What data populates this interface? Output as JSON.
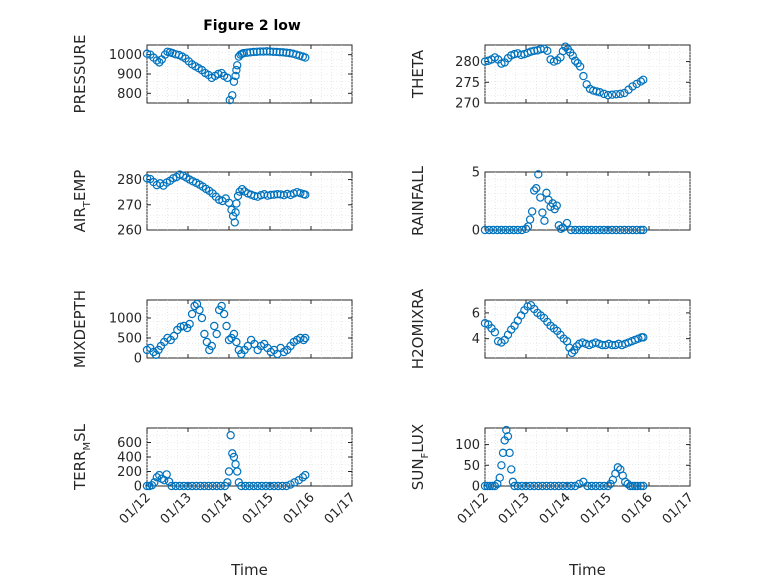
{
  "figure_title": "Figure 2 low",
  "colors": {
    "marker": "#0072BD",
    "axes": "#262626",
    "grid": "#d9d9d9"
  },
  "chart_data": [
    {
      "type": "scatter",
      "title": "Figure 2 low",
      "ylabel": "PRESSURE",
      "ylabel_sub": "",
      "ylabel_tail": "",
      "ylim": [
        750,
        1050
      ],
      "yticks": [
        800,
        900,
        1000
      ],
      "xlim": [
        0,
        5
      ],
      "xticks": [
        0,
        1,
        2,
        3,
        4,
        5
      ],
      "xticklabels": [
        "01/12",
        "01/13",
        "01/14",
        "01/15",
        "01/16",
        "01/17"
      ],
      "xlabel": "",
      "grid": true,
      "x": [
        0.0,
        0.08,
        0.16,
        0.24,
        0.3,
        0.36,
        0.44,
        0.5,
        0.56,
        0.62,
        0.7,
        0.78,
        0.86,
        0.94,
        1.02,
        1.1,
        1.18,
        1.26,
        1.34,
        1.42,
        1.5,
        1.58,
        1.66,
        1.74,
        1.82,
        1.88,
        1.96,
        2.02,
        2.08,
        2.12,
        2.16,
        2.18,
        2.2,
        2.24,
        2.28,
        2.32,
        2.36,
        2.44,
        2.52,
        2.6,
        2.68,
        2.76,
        2.84,
        2.92,
        3.0,
        3.08,
        3.16,
        3.24,
        3.32,
        3.4,
        3.48,
        3.56,
        3.64,
        3.72,
        3.8,
        3.86
      ],
      "y": [
        1005,
        1000,
        985,
        970,
        960,
        975,
        1000,
        1015,
        1012,
        1008,
        1002,
        998,
        990,
        980,
        965,
        950,
        940,
        930,
        920,
        905,
        895,
        880,
        890,
        900,
        905,
        890,
        880,
        765,
        790,
        860,
        890,
        920,
        945,
        990,
        1000,
        1005,
        1008,
        1010,
        1012,
        1014,
        1015,
        1016,
        1016,
        1017,
        1016,
        1015,
        1014,
        1013,
        1012,
        1010,
        1008,
        1005,
        1000,
        995,
        990,
        985
      ]
    },
    {
      "type": "scatter",
      "title": "",
      "ylabel": "THETA",
      "ylabel_sub": "",
      "ylabel_tail": "",
      "ylim": [
        270,
        284
      ],
      "yticks": [
        270,
        275,
        280
      ],
      "xlim": [
        0,
        5
      ],
      "xticks": [
        0,
        1,
        2,
        3,
        4,
        5
      ],
      "xticklabels": [
        "01/12",
        "01/13",
        "01/14",
        "01/15",
        "01/16",
        "01/17"
      ],
      "xlabel": "",
      "grid": true,
      "x": [
        0.0,
        0.08,
        0.16,
        0.24,
        0.32,
        0.4,
        0.48,
        0.56,
        0.64,
        0.72,
        0.8,
        0.88,
        0.96,
        1.04,
        1.12,
        1.2,
        1.28,
        1.36,
        1.44,
        1.52,
        1.6,
        1.68,
        1.76,
        1.84,
        1.9,
        1.96,
        2.02,
        2.08,
        2.14,
        2.2,
        2.26,
        2.32,
        2.4,
        2.48,
        2.56,
        2.64,
        2.72,
        2.8,
        2.9,
        3.0,
        3.1,
        3.2,
        3.3,
        3.4,
        3.5,
        3.6,
        3.7,
        3.8,
        3.86
      ],
      "y": [
        280,
        280.2,
        280.5,
        281,
        280.5,
        279.5,
        279.8,
        280.8,
        281.5,
        281.8,
        282,
        281.6,
        281.8,
        282.1,
        282.4,
        282.6,
        282.7,
        283,
        283.1,
        282.6,
        280.5,
        280,
        280.3,
        281,
        282.5,
        283.6,
        283,
        282.2,
        281.4,
        280.2,
        279.6,
        278.8,
        276.5,
        274.5,
        273.4,
        273,
        272.8,
        272.6,
        272.2,
        271.9,
        272,
        272.1,
        272.2,
        272.4,
        273.2,
        274,
        274.6,
        275.2,
        275.6
      ]
    },
    {
      "type": "scatter",
      "title": "",
      "ylabel": "AIR",
      "ylabel_sub": "T",
      "ylabel_tail": "EMP",
      "ylim": [
        260,
        283
      ],
      "yticks": [
        260,
        270,
        280
      ],
      "xlim": [
        0,
        5
      ],
      "xticks": [
        0,
        1,
        2,
        3,
        4,
        5
      ],
      "xticklabels": [
        "01/12",
        "01/13",
        "01/14",
        "01/15",
        "01/16",
        "01/17"
      ],
      "xlabel": "",
      "grid": true,
      "x": [
        0.0,
        0.08,
        0.16,
        0.24,
        0.32,
        0.4,
        0.48,
        0.56,
        0.64,
        0.72,
        0.8,
        0.88,
        0.96,
        1.04,
        1.12,
        1.2,
        1.28,
        1.36,
        1.44,
        1.52,
        1.6,
        1.68,
        1.76,
        1.84,
        1.92,
        2.0,
        2.06,
        2.1,
        2.14,
        2.16,
        2.18,
        2.22,
        2.26,
        2.32,
        2.38,
        2.46,
        2.54,
        2.62,
        2.7,
        2.78,
        2.86,
        2.94,
        3.02,
        3.1,
        3.18,
        3.26,
        3.34,
        3.42,
        3.5,
        3.58,
        3.66,
        3.74,
        3.82,
        3.86
      ],
      "y": [
        280.5,
        280.2,
        279,
        277.8,
        278.5,
        277.6,
        278.8,
        279.5,
        280.5,
        281,
        282,
        281.5,
        280.8,
        280,
        279.3,
        278.7,
        278,
        277.2,
        276.3,
        275.5,
        274.5,
        273.2,
        272,
        271.5,
        272.5,
        270.8,
        268,
        265.5,
        263,
        267,
        270.5,
        273.5,
        275.2,
        276.2,
        275.3,
        274.5,
        274,
        273.5,
        273.2,
        273.8,
        274.2,
        273.6,
        273.9,
        274,
        274.2,
        274.1,
        273.8,
        274.3,
        273.9,
        274.5,
        275,
        274.6,
        274.2,
        274
      ]
    },
    {
      "type": "scatter",
      "title": "",
      "ylabel": "RAINFALL",
      "ylabel_sub": "",
      "ylabel_tail": "",
      "ylim": [
        0,
        5
      ],
      "yticks": [
        0,
        5
      ],
      "xlim": [
        0,
        5
      ],
      "xticks": [
        0,
        1,
        2,
        3,
        4,
        5
      ],
      "xticklabels": [
        "01/12",
        "01/13",
        "01/14",
        "01/15",
        "01/16",
        "01/17"
      ],
      "xlabel": "",
      "grid": true,
      "x": [
        0.0,
        0.1,
        0.2,
        0.3,
        0.4,
        0.5,
        0.6,
        0.7,
        0.8,
        0.9,
        1.0,
        1.05,
        1.1,
        1.15,
        1.2,
        1.25,
        1.3,
        1.35,
        1.4,
        1.45,
        1.5,
        1.55,
        1.6,
        1.65,
        1.7,
        1.75,
        1.8,
        1.85,
        1.9,
        2.0,
        2.1,
        2.2,
        2.3,
        2.4,
        2.5,
        2.6,
        2.7,
        2.8,
        2.9,
        3.0,
        3.1,
        3.2,
        3.3,
        3.4,
        3.5,
        3.6,
        3.7,
        3.8,
        3.86
      ],
      "y": [
        0,
        0,
        0,
        0,
        0,
        0,
        0,
        0,
        0,
        0,
        0.1,
        0.3,
        0.9,
        1.6,
        3.4,
        3.6,
        4.8,
        2.8,
        1.5,
        0.8,
        3.2,
        2.6,
        2.0,
        2.3,
        1.8,
        2.1,
        0.4,
        0.1,
        0.2,
        0.6,
        0,
        0,
        0,
        0,
        0,
        0,
        0,
        0,
        0,
        0,
        0,
        0,
        0,
        0,
        0,
        0,
        0,
        0,
        0
      ]
    },
    {
      "type": "scatter",
      "title": "",
      "ylabel": "MIXDEPTH",
      "ylabel_sub": "",
      "ylabel_tail": "",
      "ylim": [
        0,
        1450
      ],
      "yticks": [
        0,
        500,
        1000
      ],
      "xlim": [
        0,
        5
      ],
      "xticks": [
        0,
        1,
        2,
        3,
        4,
        5
      ],
      "xticklabels": [
        "01/12",
        "01/13",
        "01/14",
        "01/15",
        "01/16",
        "01/17"
      ],
      "xlabel": "",
      "grid": true,
      "x": [
        0.0,
        0.08,
        0.16,
        0.22,
        0.28,
        0.34,
        0.42,
        0.5,
        0.58,
        0.66,
        0.74,
        0.82,
        0.9,
        0.98,
        1.04,
        1.1,
        1.16,
        1.22,
        1.28,
        1.34,
        1.4,
        1.46,
        1.52,
        1.58,
        1.64,
        1.7,
        1.76,
        1.82,
        1.88,
        1.94,
        2.0,
        2.06,
        2.12,
        2.18,
        2.24,
        2.3,
        2.38,
        2.46,
        2.54,
        2.62,
        2.7,
        2.78,
        2.86,
        2.94,
        3.02,
        3.1,
        3.18,
        3.26,
        3.34,
        3.42,
        3.5,
        3.58,
        3.66,
        3.74,
        3.82,
        3.86
      ],
      "y": [
        200,
        250,
        150,
        80,
        200,
        300,
        400,
        500,
        450,
        550,
        700,
        780,
        800,
        750,
        850,
        1100,
        1300,
        1350,
        1200,
        1000,
        600,
        400,
        200,
        300,
        800,
        600,
        1200,
        1300,
        1100,
        800,
        450,
        500,
        600,
        400,
        200,
        100,
        200,
        300,
        450,
        350,
        200,
        300,
        350,
        250,
        150,
        200,
        100,
        250,
        150,
        200,
        300,
        400,
        450,
        500,
        450,
        500
      ]
    },
    {
      "type": "scatter",
      "title": "",
      "ylabel": "H2OMIXRA",
      "ylabel_sub": "",
      "ylabel_tail": "",
      "ylim": [
        2.5,
        7
      ],
      "yticks": [
        4,
        6
      ],
      "xlim": [
        0,
        5
      ],
      "xticks": [
        0,
        1,
        2,
        3,
        4,
        5
      ],
      "xticklabels": [
        "01/12",
        "01/13",
        "01/14",
        "01/15",
        "01/16",
        "01/17"
      ],
      "xlabel": "",
      "grid": true,
      "x": [
        0.0,
        0.08,
        0.16,
        0.24,
        0.32,
        0.4,
        0.48,
        0.56,
        0.64,
        0.72,
        0.8,
        0.88,
        0.96,
        1.04,
        1.12,
        1.2,
        1.28,
        1.36,
        1.44,
        1.52,
        1.6,
        1.68,
        1.76,
        1.84,
        1.92,
        2.0,
        2.06,
        2.12,
        2.18,
        2.24,
        2.3,
        2.38,
        2.46,
        2.54,
        2.62,
        2.7,
        2.78,
        2.86,
        2.94,
        3.02,
        3.1,
        3.18,
        3.26,
        3.34,
        3.42,
        3.5,
        3.58,
        3.66,
        3.74,
        3.82,
        3.86
      ],
      "y": [
        5.2,
        5.1,
        4.8,
        4.5,
        3.8,
        3.7,
        3.9,
        4.3,
        4.7,
        5.0,
        5.4,
        5.8,
        6.2,
        6.5,
        6.6,
        6.3,
        6.0,
        5.8,
        5.6,
        5.3,
        5.0,
        4.8,
        4.6,
        4.3,
        4.0,
        3.8,
        3.3,
        2.9,
        3.1,
        3.4,
        3.6,
        3.7,
        3.6,
        3.5,
        3.6,
        3.7,
        3.6,
        3.5,
        3.5,
        3.6,
        3.5,
        3.5,
        3.6,
        3.5,
        3.6,
        3.7,
        3.8,
        3.9,
        4.0,
        4.1,
        4.1
      ]
    },
    {
      "type": "scatter",
      "title": "",
      "ylabel": "TERR",
      "ylabel_sub": "M",
      "ylabel_tail": "SL",
      "ylim": [
        0,
        800
      ],
      "yticks": [
        0,
        200,
        400,
        600
      ],
      "xlim": [
        0,
        5
      ],
      "xticks": [
        0,
        1,
        2,
        3,
        4,
        5
      ],
      "xticklabels": [
        "01/12",
        "01/13",
        "01/14",
        "01/15",
        "01/16",
        "01/17"
      ],
      "xlabel": "Time",
      "grid": true,
      "x": [
        0.0,
        0.06,
        0.12,
        0.18,
        0.24,
        0.3,
        0.36,
        0.42,
        0.48,
        0.54,
        0.6,
        0.7,
        0.8,
        0.9,
        1.0,
        1.1,
        1.2,
        1.3,
        1.4,
        1.5,
        1.6,
        1.7,
        1.8,
        1.9,
        1.96,
        2.0,
        2.04,
        2.08,
        2.12,
        2.16,
        2.2,
        2.24,
        2.3,
        2.4,
        2.5,
        2.6,
        2.7,
        2.8,
        2.9,
        3.0,
        3.1,
        3.2,
        3.3,
        3.4,
        3.5,
        3.6,
        3.7,
        3.8,
        3.86
      ],
      "y": [
        0,
        0,
        10,
        50,
        120,
        150,
        100,
        80,
        160,
        60,
        0,
        0,
        0,
        0,
        0,
        0,
        0,
        0,
        0,
        0,
        0,
        0,
        0,
        0,
        50,
        200,
        700,
        450,
        400,
        300,
        200,
        50,
        0,
        0,
        0,
        0,
        0,
        0,
        0,
        0,
        0,
        0,
        0,
        0,
        20,
        50,
        80,
        120,
        150
      ]
    },
    {
      "type": "scatter",
      "title": "",
      "ylabel": "SUN",
      "ylabel_sub": "F",
      "ylabel_tail": "LUX",
      "ylim": [
        0,
        140
      ],
      "yticks": [
        0,
        50,
        100
      ],
      "xlim": [
        0,
        5
      ],
      "xticks": [
        0,
        1,
        2,
        3,
        4,
        5
      ],
      "xticklabels": [
        "01/12",
        "01/13",
        "01/14",
        "01/15",
        "01/16",
        "01/17"
      ],
      "xlabel": "Time",
      "grid": true,
      "x": [
        0.0,
        0.06,
        0.12,
        0.18,
        0.24,
        0.3,
        0.36,
        0.4,
        0.44,
        0.48,
        0.52,
        0.56,
        0.6,
        0.64,
        0.68,
        0.72,
        0.8,
        0.9,
        1.0,
        1.1,
        1.2,
        1.3,
        1.4,
        1.5,
        1.6,
        1.7,
        1.8,
        1.9,
        2.0,
        2.1,
        2.2,
        2.3,
        2.4,
        2.5,
        2.6,
        2.7,
        2.8,
        2.9,
        3.0,
        3.06,
        3.12,
        3.18,
        3.24,
        3.3,
        3.36,
        3.42,
        3.48,
        3.54,
        3.6,
        3.66,
        3.72,
        3.8,
        3.86
      ],
      "y": [
        0,
        0,
        0,
        0,
        0,
        5,
        20,
        50,
        80,
        110,
        135,
        120,
        80,
        40,
        10,
        0,
        0,
        0,
        0,
        0,
        0,
        0,
        0,
        0,
        0,
        0,
        0,
        0,
        0,
        0,
        0,
        5,
        10,
        0,
        0,
        0,
        0,
        0,
        0,
        5,
        15,
        30,
        45,
        40,
        25,
        10,
        5,
        0,
        0,
        0,
        0,
        0,
        0
      ]
    }
  ]
}
